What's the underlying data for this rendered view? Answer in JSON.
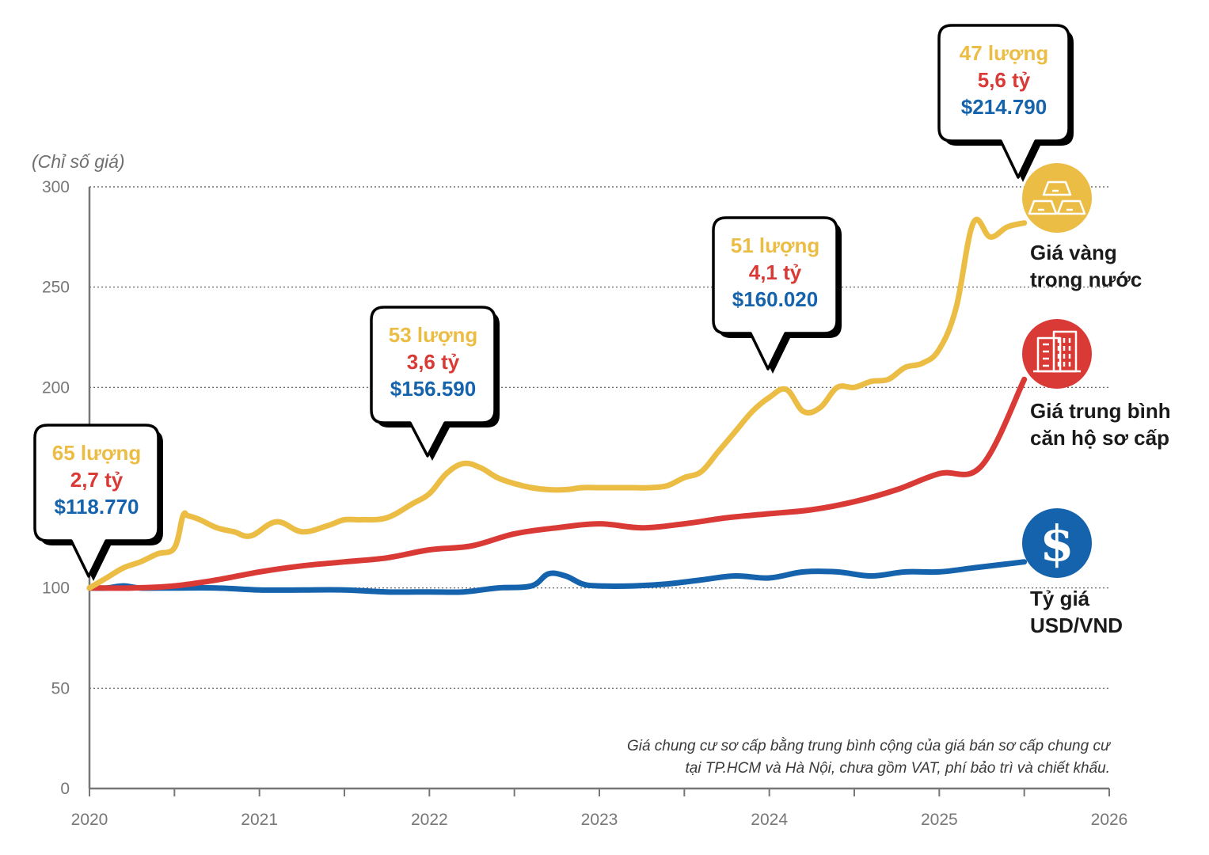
{
  "chart_data": {
    "type": "line",
    "ylabel": "(Chỉ số giá)",
    "ylim": [
      0,
      300
    ],
    "yticks": [
      "0",
      "50",
      "100",
      "200",
      "250",
      "300"
    ],
    "xticks": [
      "2020",
      "2021",
      "2022",
      "2023",
      "2024",
      "2025",
      "2026"
    ],
    "xlim": [
      2020,
      2026
    ],
    "grid": "horizontal dotted",
    "series": [
      {
        "name": "Giá vàng trong nước",
        "color": "#ecbd45",
        "x": [
          2020.0,
          2020.1,
          2020.2,
          2020.3,
          2020.4,
          2020.5,
          2020.55,
          2020.58,
          2020.65,
          2020.75,
          2020.85,
          2020.95,
          2021.1,
          2021.25,
          2021.4,
          2021.5,
          2021.6,
          2021.75,
          2021.9,
          2022.0,
          2022.1,
          2022.2,
          2022.3,
          2022.4,
          2022.5,
          2022.6,
          2022.7,
          2022.8,
          2022.9,
          2023.0,
          2023.1,
          2023.2,
          2023.3,
          2023.4,
          2023.5,
          2023.6,
          2023.7,
          2023.8,
          2023.9,
          2024.0,
          2024.1,
          2024.2,
          2024.3,
          2024.4,
          2024.5,
          2024.6,
          2024.7,
          2024.8,
          2024.9,
          2025.0,
          2025.1,
          2025.2,
          2025.3,
          2025.4,
          2025.5
        ],
        "values": [
          100,
          105,
          110,
          113,
          117,
          120,
          136,
          136,
          134,
          130,
          128,
          126,
          133,
          128,
          131,
          134,
          134,
          135,
          142,
          147,
          157,
          162,
          160,
          155,
          152,
          150,
          149,
          149,
          150,
          150,
          150,
          150,
          150,
          151,
          155,
          158,
          168,
          178,
          188,
          195,
          199,
          188,
          190,
          200,
          200,
          203,
          204,
          210,
          212,
          219,
          240,
          282,
          275,
          280,
          282
        ]
      },
      {
        "name": "Giá trung bình căn hộ sơ cấp",
        "color": "#d93a36",
        "x": [
          2020.0,
          2020.25,
          2020.5,
          2020.75,
          2021.0,
          2021.25,
          2021.5,
          2021.75,
          2022.0,
          2022.25,
          2022.5,
          2022.75,
          2023.0,
          2023.25,
          2023.5,
          2023.75,
          2024.0,
          2024.25,
          2024.5,
          2024.75,
          2025.0,
          2025.25,
          2025.5
        ],
        "values": [
          100,
          100,
          101,
          104,
          108,
          111,
          113,
          115,
          119,
          121,
          127,
          130,
          132,
          130,
          132,
          135,
          137,
          139,
          143,
          149,
          157,
          161,
          204
        ]
      },
      {
        "name": "Tỷ giá USD/VND",
        "color": "#1463ac",
        "x": [
          2020.0,
          2020.1,
          2020.2,
          2020.3,
          2020.5,
          2020.75,
          2021.0,
          2021.25,
          2021.5,
          2021.75,
          2022.0,
          2022.2,
          2022.4,
          2022.6,
          2022.7,
          2022.8,
          2022.9,
          2023.0,
          2023.2,
          2023.4,
          2023.6,
          2023.8,
          2024.0,
          2024.2,
          2024.4,
          2024.6,
          2024.8,
          2025.0,
          2025.2,
          2025.4,
          2025.5
        ],
        "values": [
          100,
          100,
          101,
          100,
          100,
          100,
          99,
          99,
          99,
          98,
          98,
          98,
          100,
          101,
          107,
          106,
          102,
          101,
          101,
          102,
          104,
          106,
          105,
          108,
          108,
          106,
          108,
          108,
          110,
          112,
          113
        ]
      }
    ],
    "callouts": [
      {
        "x": 2020.0,
        "gold": "65 lượng",
        "apartment": "2,7 tỷ",
        "usd": "$118.770"
      },
      {
        "x": 2022.0,
        "gold": "53 lượng",
        "apartment": "3,6 tỷ",
        "usd": "$156.590"
      },
      {
        "x": 2024.0,
        "gold": "51 lượng",
        "apartment": "4,1 tỷ",
        "usd": "$160.020"
      },
      {
        "x": 2025.5,
        "gold": "47 lượng",
        "apartment": "5,6 tỷ",
        "usd": "$214.790"
      }
    ],
    "legend": [
      {
        "line1": "Giá vàng",
        "line2": "trong nước",
        "icon": "gold-bars-icon",
        "color": "#ecbd45"
      },
      {
        "line1": "Giá trung bình",
        "line2": "căn hộ sơ cấp",
        "icon": "building-icon",
        "color": "#d93a36"
      },
      {
        "line1": "Tỷ giá",
        "line2": "USD/VND",
        "icon": "dollar-icon",
        "color": "#1463ac"
      }
    ],
    "note": [
      "Giá chung cư sơ cấp bằng trung bình cộng của giá bán sơ cấp chung cư",
      "tại TP.HCM và Hà Nội, chưa gồm VAT, phí bảo trì và chiết khấu."
    ]
  }
}
